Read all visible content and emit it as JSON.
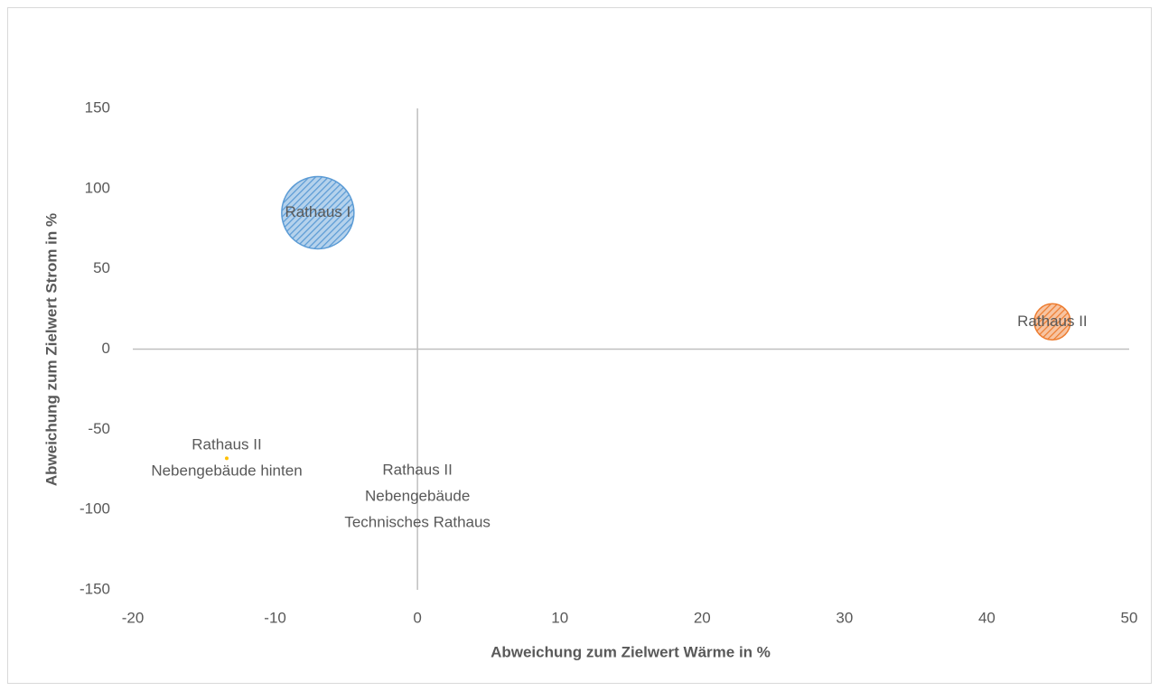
{
  "chart_data": {
    "type": "bubble",
    "x_label": "Abweichung zum Zielwert Wärme in %",
    "y_label": "Abweichung zum Zielwert Strom in %",
    "xlim": [
      -20,
      50
    ],
    "xticks": [
      -20,
      -10,
      0,
      10,
      20,
      30,
      40,
      50
    ],
    "ylim": [
      -150,
      150
    ],
    "yticks": [
      -150,
      -100,
      -50,
      0,
      50,
      100,
      150
    ],
    "points": [
      {
        "label": [
          "Rathaus I"
        ],
        "x": -7,
        "y": 85,
        "size": 160,
        "color": "#5b9bd5"
      },
      {
        "label": [
          "Rathaus II"
        ],
        "x": 44.6,
        "y": 17,
        "size": 40,
        "color": "#ed7d31"
      },
      {
        "label": [
          "Rathaus II",
          "Nebengebäude hinten"
        ],
        "x": -13.4,
        "y": -68,
        "size": 0.4,
        "color": "#ffc000"
      },
      {
        "label": [
          "Rathaus II",
          "Nebengebäude",
          "Technisches Rathaus"
        ],
        "x": 0,
        "y": -92,
        "size": 0,
        "color": "#a5a5a5"
      }
    ]
  }
}
